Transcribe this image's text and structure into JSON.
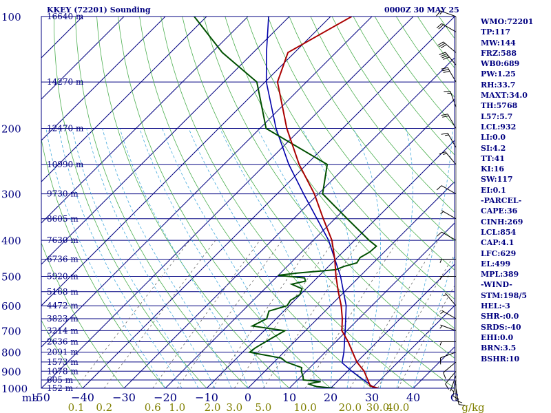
{
  "header": {
    "station": "KKEY (72201) Sounding",
    "datetime": "0000Z 30 MAY 25"
  },
  "colors": {
    "frame": "#000080",
    "isobar": "#000080",
    "isotherm": "#000080",
    "dry_adiabat": "#4caf50",
    "moist_adiabat": "#44aadd",
    "mixing_ratio": "#666666",
    "temperature": "#aa0000",
    "dewpoint": "#005000",
    "parcel": "#0000aa",
    "wind_barb": "#000000",
    "mixing_ratio_labels": "#808000"
  },
  "indices": [
    "WMO:72201",
    "TP:117",
    "MW:144",
    "FRZ:588",
    "WB0:689",
    "PW:1.25",
    "RH:33.7",
    "MAXT:34.0",
    "TH:5768",
    "L57:5.7",
    "LCL:932",
    "LI:0.0",
    "SI:4.2",
    "TT:41",
    "KI:16",
    "SW:117",
    "EI:0.1",
    "-PARCEL-",
    "CAPE:36",
    "CINH:269",
    "LCL:854",
    "CAP:4.1",
    "LFC:629",
    "EL:499",
    "MPL:389",
    "-WIND-",
    "STM:198/5",
    "HEL:-3",
    "SHR-:0.0",
    "SRDS:-40",
    "EHI:0.0",
    "BRN:3.5",
    "BSHR:10"
  ],
  "chart_data": {
    "type": "line",
    "title": "KKEY (72201) Sounding",
    "xlabel": "",
    "ylabel": "mb",
    "ylim": [
      1000,
      100
    ],
    "xlim": [
      -50,
      50
    ],
    "pressure_ticks": [
      {
        "p": 100,
        "label": "100"
      },
      {
        "p": 200,
        "label": "200"
      },
      {
        "p": 300,
        "label": "300"
      },
      {
        "p": 400,
        "label": "400"
      },
      {
        "p": 500,
        "label": "500"
      },
      {
        "p": 600,
        "label": "600"
      },
      {
        "p": 700,
        "label": "700"
      },
      {
        "p": 800,
        "label": "800"
      },
      {
        "p": 900,
        "label": "900"
      },
      {
        "p": 1000,
        "label": "1000"
      }
    ],
    "height_labels": [
      {
        "p": 100,
        "label": "16640 m"
      },
      {
        "p": 150,
        "label": "14270 m"
      },
      {
        "p": 200,
        "label": "12470 m"
      },
      {
        "p": 250,
        "label": "10990 m"
      },
      {
        "p": 300,
        "label": "9730 m"
      },
      {
        "p": 350,
        "label": "8605 m"
      },
      {
        "p": 400,
        "label": "7630 m"
      },
      {
        "p": 450,
        "label": "6736 m"
      },
      {
        "p": 500,
        "label": "5920 m"
      },
      {
        "p": 550,
        "label": "5168 m"
      },
      {
        "p": 600,
        "label": "4472 m"
      },
      {
        "p": 650,
        "label": "3823 m"
      },
      {
        "p": 700,
        "label": "3214 m"
      },
      {
        "p": 750,
        "label": "2636 m"
      },
      {
        "p": 800,
        "label": "2091 m"
      },
      {
        "p": 850,
        "label": "1573 m"
      },
      {
        "p": 900,
        "label": "1078 m"
      },
      {
        "p": 950,
        "label": "605 m"
      },
      {
        "p": 1000,
        "label": "152 m"
      }
    ],
    "x_ticks": [
      {
        "t": -50,
        "label": "-50"
      },
      {
        "t": -40,
        "label": "−40"
      },
      {
        "t": -30,
        "label": "−30"
      },
      {
        "t": -20,
        "label": "−20"
      },
      {
        "t": -10,
        "label": "−10"
      },
      {
        "t": 0,
        "label": "0"
      },
      {
        "t": 10,
        "label": "10"
      },
      {
        "t": 20,
        "label": "20"
      },
      {
        "t": 30,
        "label": "30"
      },
      {
        "t": 40,
        "label": "40"
      },
      {
        "t": 50,
        "label": "C"
      }
    ],
    "mb_label": "mb",
    "mixing_ratio_label_values": [
      "0.1",
      "0.2",
      "0.6",
      "1.0",
      "2.0",
      "3.0",
      "5.0",
      "10.0",
      "20.0",
      "30.0",
      "40.0"
    ],
    "mixing_ratio_unit": "g/kg",
    "temperature_profile": [
      {
        "p": 1000,
        "t": 31.5
      },
      {
        "p": 985,
        "t": 29.0
      },
      {
        "p": 950,
        "t": 27.0
      },
      {
        "p": 900,
        "t": 24.0
      },
      {
        "p": 850,
        "t": 20.0
      },
      {
        "p": 800,
        "t": 16.6
      },
      {
        "p": 750,
        "t": 13.0
      },
      {
        "p": 700,
        "t": 8.8
      },
      {
        "p": 650,
        "t": 6.0
      },
      {
        "p": 600,
        "t": 2.6
      },
      {
        "p": 550,
        "t": -1.5
      },
      {
        "p": 500,
        "t": -5.8
      },
      {
        "p": 450,
        "t": -10.2
      },
      {
        "p": 400,
        "t": -15.5
      },
      {
        "p": 350,
        "t": -22.8
      },
      {
        "p": 300,
        "t": -31.0
      },
      {
        "p": 250,
        "t": -41.8
      },
      {
        "p": 200,
        "t": -53.5
      },
      {
        "p": 150,
        "t": -67.0
      },
      {
        "p": 125,
        "t": -71.6
      },
      {
        "p": 100,
        "t": -64.9
      }
    ],
    "dewpoint_profile": [
      {
        "p": 1000,
        "t": 21.0
      },
      {
        "p": 990,
        "t": 16.2
      },
      {
        "p": 975,
        "t": 13.8
      },
      {
        "p": 970,
        "t": 14.0
      },
      {
        "p": 960,
        "t": 16.0
      },
      {
        "p": 950,
        "t": 11.4
      },
      {
        "p": 930,
        "t": 10.5
      },
      {
        "p": 900,
        "t": 8.8
      },
      {
        "p": 880,
        "t": 8.0
      },
      {
        "p": 850,
        "t": 2.9
      },
      {
        "p": 830,
        "t": 0.8
      },
      {
        "p": 800,
        "t": -8.3
      },
      {
        "p": 780,
        "t": -8.0
      },
      {
        "p": 750,
        "t": -7.0
      },
      {
        "p": 700,
        "t": -5.0
      },
      {
        "p": 680,
        "t": -14.0
      },
      {
        "p": 650,
        "t": -12.3
      },
      {
        "p": 620,
        "t": -13.6
      },
      {
        "p": 600,
        "t": -10.5
      },
      {
        "p": 580,
        "t": -11.0
      },
      {
        "p": 560,
        "t": -10.1
      },
      {
        "p": 540,
        "t": -11.0
      },
      {
        "p": 525,
        "t": -14.6
      },
      {
        "p": 515,
        "t": -12.0
      },
      {
        "p": 505,
        "t": -13.0
      },
      {
        "p": 497,
        "t": -20.0
      },
      {
        "p": 490,
        "t": -16.0
      },
      {
        "p": 480,
        "t": -7.5
      },
      {
        "p": 470,
        "t": -6.2
      },
      {
        "p": 460,
        "t": -4.0
      },
      {
        "p": 445,
        "t": -4.5
      },
      {
        "p": 430,
        "t": -3.5
      },
      {
        "p": 415,
        "t": -3.3
      },
      {
        "p": 400,
        "t": -6.5
      },
      {
        "p": 350,
        "t": -17.0
      },
      {
        "p": 300,
        "t": -29.0
      },
      {
        "p": 250,
        "t": -35.0
      },
      {
        "p": 200,
        "t": -58.5
      },
      {
        "p": 150,
        "t": -72.0
      },
      {
        "p": 125,
        "t": -87.5
      },
      {
        "p": 100,
        "t": -103.0
      }
    ],
    "parcel_profile": [
      {
        "p": 1000,
        "t": 30.7
      },
      {
        "p": 950,
        "t": 26.0
      },
      {
        "p": 900,
        "t": 21.0
      },
      {
        "p": 854,
        "t": 16.6
      },
      {
        "p": 800,
        "t": 14.5
      },
      {
        "p": 700,
        "t": 9.6
      },
      {
        "p": 600,
        "t": 3.8
      },
      {
        "p": 500,
        "t": -4.7
      },
      {
        "p": 400,
        "t": -16.3
      },
      {
        "p": 300,
        "t": -33.6
      },
      {
        "p": 250,
        "t": -44.3
      },
      {
        "p": 200,
        "t": -56.1
      },
      {
        "p": 150,
        "t": -69.7
      },
      {
        "p": 125,
        "t": -76.8
      },
      {
        "p": 100,
        "t": -85.0
      }
    ],
    "wind_barbs": [
      {
        "p": 1000,
        "dir": 170,
        "spd": 10
      },
      {
        "p": 975,
        "dir": 180,
        "spd": 10
      },
      {
        "p": 950,
        "dir": 190,
        "spd": 10
      },
      {
        "p": 925,
        "dir": 200,
        "spd": 5
      },
      {
        "p": 900,
        "dir": 220,
        "spd": 10
      },
      {
        "p": 850,
        "dir": 230,
        "spd": 10
      },
      {
        "p": 800,
        "dir": 250,
        "spd": 10
      },
      {
        "p": 750,
        "dir": 270,
        "spd": 5
      },
      {
        "p": 700,
        "dir": 290,
        "spd": 5
      },
      {
        "p": 650,
        "dir": 300,
        "spd": 5
      },
      {
        "p": 600,
        "dir": 320,
        "spd": 5
      },
      {
        "p": 500,
        "dir": 270,
        "spd": 5
      },
      {
        "p": 450,
        "dir": 270,
        "spd": 5
      },
      {
        "p": 400,
        "dir": 300,
        "spd": 10
      },
      {
        "p": 350,
        "dir": 300,
        "spd": 5
      },
      {
        "p": 300,
        "dir": 300,
        "spd": 10
      },
      {
        "p": 250,
        "dir": 320,
        "spd": 15
      },
      {
        "p": 225,
        "dir": 330,
        "spd": 15
      },
      {
        "p": 200,
        "dir": 330,
        "spd": 20
      },
      {
        "p": 175,
        "dir": 340,
        "spd": 15
      },
      {
        "p": 150,
        "dir": 330,
        "spd": 30
      },
      {
        "p": 135,
        "dir": 320,
        "spd": 40
      },
      {
        "p": 125,
        "dir": 310,
        "spd": 30
      },
      {
        "p": 110,
        "dir": 300,
        "spd": 20
      },
      {
        "p": 100,
        "dir": 290,
        "spd": 15
      }
    ]
  }
}
